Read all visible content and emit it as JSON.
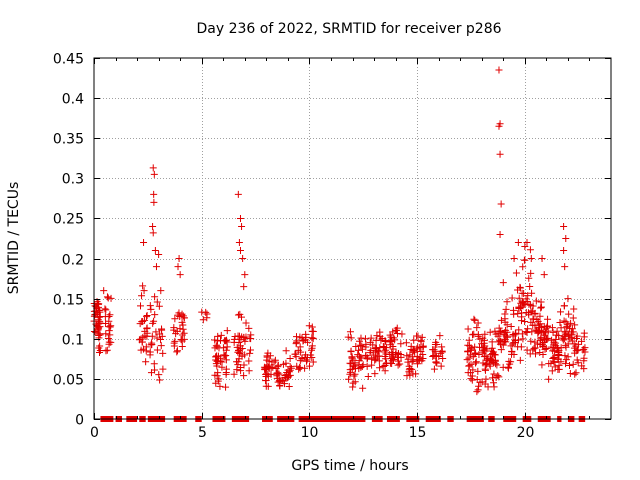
{
  "chart_data": {
    "type": "scatter",
    "title": "Day 236 of 2022, SRMTID for receiver p286",
    "xlabel": "GPS time / hours",
    "ylabel": "SRMTID / TECUs",
    "xlim": [
      0,
      24
    ],
    "ylim": [
      0,
      0.45
    ],
    "grid": true,
    "marker": "+",
    "series_color": "#e00000",
    "x_ticks": [
      0,
      5,
      10,
      15,
      20
    ],
    "x_tick_labels": [
      "0",
      "5",
      "10",
      "15",
      "20"
    ],
    "y_ticks": [
      0,
      0.05,
      0.1,
      0.15,
      0.2,
      0.25,
      0.3,
      0.35,
      0.4,
      0.45
    ],
    "y_tick_labels": [
      "0",
      "0.05",
      "0.1",
      "0.15",
      "0.2",
      "0.25",
      "0.3",
      "0.35",
      "0.4",
      "0.45"
    ],
    "clusters": [
      {
        "x": [
          0.0,
          0.3
        ],
        "y": [
          0.08,
          0.16
        ],
        "n": 40
      },
      {
        "x": [
          0.5,
          0.8
        ],
        "y": [
          0.07,
          0.16
        ],
        "n": 22
      },
      {
        "x": [
          2.1,
          2.5
        ],
        "y": [
          0.06,
          0.17
        ],
        "n": 26
      },
      {
        "x": [
          2.6,
          3.2
        ],
        "y": [
          0.04,
          0.16
        ],
        "n": 30
      },
      {
        "x": [
          3.6,
          4.2
        ],
        "y": [
          0.07,
          0.15
        ],
        "n": 28
      },
      {
        "x": [
          4.9,
          5.3
        ],
        "y": [
          0.12,
          0.14
        ],
        "n": 5
      },
      {
        "x": [
          5.6,
          6.2
        ],
        "y": [
          0.03,
          0.12
        ],
        "n": 45
      },
      {
        "x": [
          6.5,
          7.3
        ],
        "y": [
          0.05,
          0.14
        ],
        "n": 45
      },
      {
        "x": [
          7.9,
          9.2
        ],
        "y": [
          0.03,
          0.09
        ],
        "n": 70
      },
      {
        "x": [
          9.3,
          10.2
        ],
        "y": [
          0.05,
          0.12
        ],
        "n": 45
      },
      {
        "x": [
          11.8,
          12.5
        ],
        "y": [
          0.03,
          0.11
        ],
        "n": 45
      },
      {
        "x": [
          12.6,
          13.6
        ],
        "y": [
          0.05,
          0.12
        ],
        "n": 55
      },
      {
        "x": [
          13.7,
          14.3
        ],
        "y": [
          0.05,
          0.12
        ],
        "n": 38
      },
      {
        "x": [
          14.5,
          15.3
        ],
        "y": [
          0.05,
          0.12
        ],
        "n": 45
      },
      {
        "x": [
          15.7,
          16.2
        ],
        "y": [
          0.06,
          0.11
        ],
        "n": 22
      },
      {
        "x": [
          17.3,
          18.0
        ],
        "y": [
          0.03,
          0.13
        ],
        "n": 45
      },
      {
        "x": [
          18.0,
          18.8
        ],
        "y": [
          0.03,
          0.12
        ],
        "n": 60
      },
      {
        "x": [
          18.8,
          19.6
        ],
        "y": [
          0.05,
          0.16
        ],
        "n": 55
      },
      {
        "x": [
          19.6,
          20.4
        ],
        "y": [
          0.06,
          0.22
        ],
        "n": 60
      },
      {
        "x": [
          20.4,
          21.1
        ],
        "y": [
          0.06,
          0.15
        ],
        "n": 55
      },
      {
        "x": [
          21.1,
          21.6
        ],
        "y": [
          0.04,
          0.12
        ],
        "n": 40
      },
      {
        "x": [
          21.6,
          22.3
        ],
        "y": [
          0.05,
          0.15
        ],
        "n": 45
      },
      {
        "x": [
          22.3,
          22.8
        ],
        "y": [
          0.05,
          0.12
        ],
        "n": 25
      }
    ],
    "outliers": [
      {
        "x": 0.1,
        "y": 0.14
      },
      {
        "x": 0.15,
        "y": 0.13
      },
      {
        "x": 0.45,
        "y": 0.16
      },
      {
        "x": 2.3,
        "y": 0.22
      },
      {
        "x": 2.75,
        "y": 0.313
      },
      {
        "x": 2.8,
        "y": 0.305
      },
      {
        "x": 2.77,
        "y": 0.28
      },
      {
        "x": 2.78,
        "y": 0.27
      },
      {
        "x": 2.72,
        "y": 0.24
      },
      {
        "x": 2.75,
        "y": 0.232
      },
      {
        "x": 2.9,
        "y": 0.19
      },
      {
        "x": 2.85,
        "y": 0.21
      },
      {
        "x": 3.0,
        "y": 0.205
      },
      {
        "x": 3.1,
        "y": 0.16
      },
      {
        "x": 3.95,
        "y": 0.2
      },
      {
        "x": 3.9,
        "y": 0.19
      },
      {
        "x": 4.0,
        "y": 0.18
      },
      {
        "x": 6.7,
        "y": 0.28
      },
      {
        "x": 6.8,
        "y": 0.25
      },
      {
        "x": 6.85,
        "y": 0.24
      },
      {
        "x": 6.75,
        "y": 0.22
      },
      {
        "x": 6.8,
        "y": 0.21
      },
      {
        "x": 6.9,
        "y": 0.2
      },
      {
        "x": 7.0,
        "y": 0.18
      },
      {
        "x": 6.95,
        "y": 0.165
      },
      {
        "x": 18.8,
        "y": 0.435
      },
      {
        "x": 18.85,
        "y": 0.368
      },
      {
        "x": 18.8,
        "y": 0.365
      },
      {
        "x": 18.85,
        "y": 0.33
      },
      {
        "x": 18.9,
        "y": 0.268
      },
      {
        "x": 18.85,
        "y": 0.23
      },
      {
        "x": 19.0,
        "y": 0.17
      },
      {
        "x": 19.5,
        "y": 0.2
      },
      {
        "x": 19.7,
        "y": 0.22
      },
      {
        "x": 20.1,
        "y": 0.22
      },
      {
        "x": 20.0,
        "y": 0.215
      },
      {
        "x": 20.3,
        "y": 0.2
      },
      {
        "x": 20.8,
        "y": 0.2
      },
      {
        "x": 20.9,
        "y": 0.18
      },
      {
        "x": 21.8,
        "y": 0.24
      },
      {
        "x": 21.9,
        "y": 0.225
      },
      {
        "x": 21.8,
        "y": 0.21
      },
      {
        "x": 21.85,
        "y": 0.19
      },
      {
        "x": 22.0,
        "y": 0.15
      }
    ],
    "zero_segments": [
      [
        0.3,
        0.9
      ],
      [
        1.0,
        1.3
      ],
      [
        1.5,
        2.0
      ],
      [
        2.1,
        2.4
      ],
      [
        2.5,
        3.3
      ],
      [
        3.7,
        4.3
      ],
      [
        4.7,
        5.0
      ],
      [
        5.5,
        6.1
      ],
      [
        6.4,
        7.2
      ],
      [
        7.8,
        8.3
      ],
      [
        8.5,
        9.3
      ],
      [
        9.5,
        12.6
      ],
      [
        12.9,
        13.4
      ],
      [
        13.6,
        14.2
      ],
      [
        14.5,
        15.1
      ],
      [
        15.4,
        16.1
      ],
      [
        16.4,
        16.7
      ],
      [
        17.3,
        18.1
      ],
      [
        18.3,
        18.6
      ],
      [
        19.0,
        19.6
      ],
      [
        19.9,
        20.3
      ],
      [
        20.6,
        21.2
      ],
      [
        21.5,
        21.7
      ],
      [
        22.0,
        22.3
      ],
      [
        22.5,
        22.8
      ]
    ]
  }
}
